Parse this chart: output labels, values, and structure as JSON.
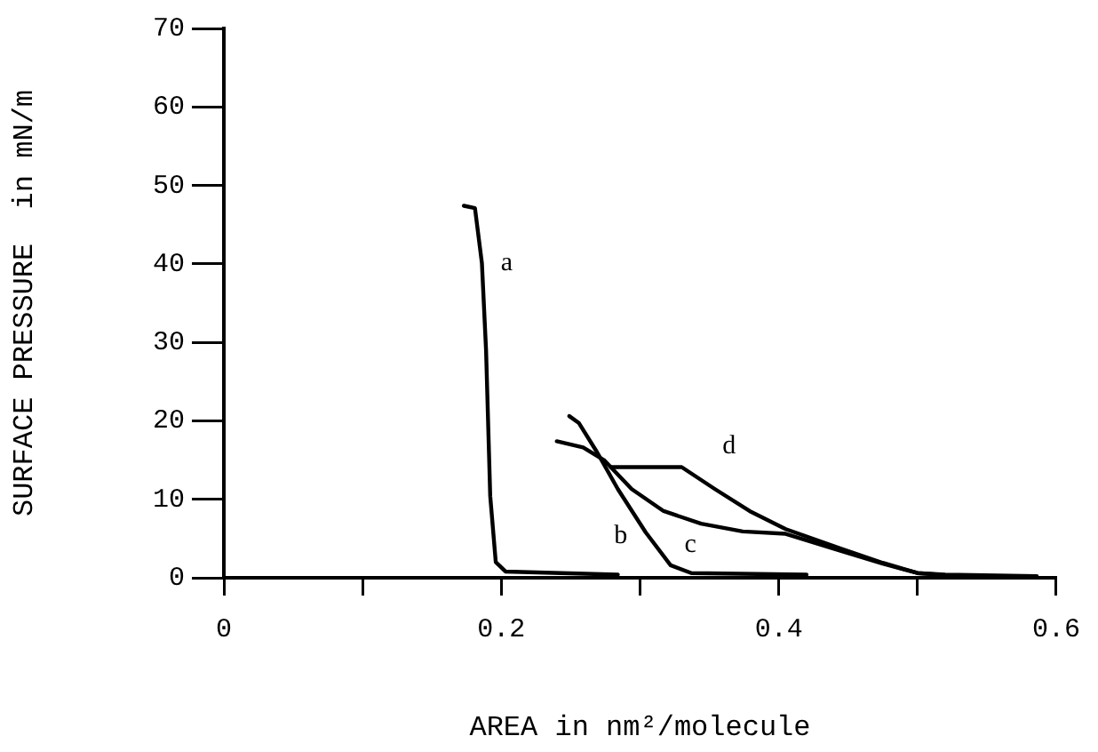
{
  "chart_data": {
    "type": "line",
    "xlabel": "AREA in nm²/molecule",
    "ylabel": "SURFACE PRESSURE  in mN/m",
    "xlim": [
      0,
      0.6
    ],
    "xticks": [
      0,
      {
        "value": 0.1,
        "label": null
      },
      0.2,
      {
        "value": 0.3,
        "label": null
      },
      0.4,
      {
        "value": 0.5,
        "label": null
      },
      0.6
    ],
    "ylim": [
      0,
      70
    ],
    "yticks": [
      0,
      10,
      20,
      30,
      40,
      50,
      60,
      70
    ],
    "marker": "none",
    "line_style": "solid",
    "legend": false,
    "series": [
      {
        "name": "a",
        "color": "#000000",
        "x": [
          0.173,
          0.181,
          0.186,
          0.189,
          0.192,
          0.196,
          0.203,
          0.284
        ],
        "values": [
          47.4,
          47.1,
          40.1,
          29,
          10.4,
          2,
          0.8,
          0.4
        ]
      },
      {
        "name": "b",
        "color": "#000000",
        "x": [
          0.249,
          0.256,
          0.269,
          0.284,
          0.304,
          0.322,
          0.337,
          0.42
        ],
        "values": [
          20.6,
          19.7,
          16,
          11.3,
          5.8,
          1.6,
          0.6,
          0.4
        ]
      },
      {
        "name": "c",
        "color": "#000000",
        "x": [
          0.24,
          0.259,
          0.274,
          0.294,
          0.317,
          0.344,
          0.374,
          0.405,
          0.445,
          0.475,
          0.5,
          0.515
        ],
        "values": [
          17.4,
          16.6,
          15,
          11.3,
          8.5,
          6.9,
          5.9,
          5.6,
          3.4,
          1.8,
          0.6,
          0.4
        ]
      },
      {
        "name": "d",
        "color": "#000000",
        "x": [
          0.279,
          0.33,
          0.354,
          0.379,
          0.405,
          0.445,
          0.475,
          0.5,
          0.52,
          0.586
        ],
        "values": [
          14.1,
          14.1,
          11.3,
          8.5,
          6.2,
          3.7,
          1.9,
          0.6,
          0.4,
          0.2
        ]
      }
    ]
  }
}
